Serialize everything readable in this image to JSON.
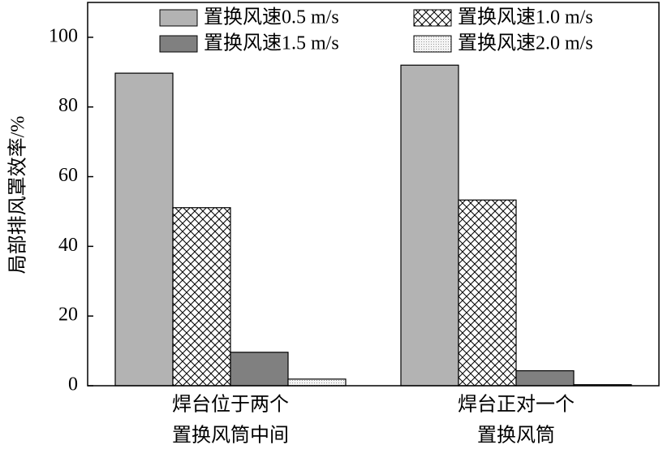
{
  "chart_data": {
    "type": "bar",
    "y_label": "局部排风罩效率/%",
    "categories": [
      [
        "焊台位于两个",
        "置换风筒中间"
      ],
      [
        "焊台正对一个",
        "置换风筒"
      ]
    ],
    "series": [
      {
        "name": "置换风速0.5 m/s",
        "color": "#b3b3b3",
        "pattern": "solid",
        "values": [
          89.7,
          92.0
        ]
      },
      {
        "name": "置换风速1.0 m/s",
        "color": "#ffffff",
        "pattern": "crosshatch",
        "values": [
          51.1,
          53.3
        ]
      },
      {
        "name": "置换风速1.5 m/s",
        "color": "#808080",
        "pattern": "solid",
        "values": [
          9.6,
          4.3
        ]
      },
      {
        "name": "置换风速2.0 m/s",
        "color": "#ececec",
        "pattern": "dots",
        "values": [
          1.9,
          0.3
        ]
      }
    ],
    "ylim": [
      0,
      110
    ],
    "yticks": [
      0,
      20,
      40,
      60,
      80,
      100
    ],
    "grid": false,
    "legend": "top-right"
  }
}
